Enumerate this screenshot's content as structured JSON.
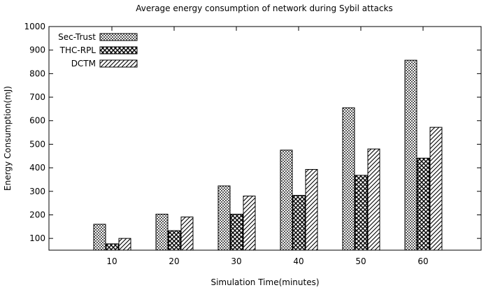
{
  "chart_data": {
    "type": "bar",
    "title": "Average energy consumption of network during Sybil attacks",
    "xlabel": "Simulation Time(minutes)",
    "ylabel": "Energy Consumption(mJ)",
    "categories": [
      "10",
      "20",
      "30",
      "40",
      "50",
      "60"
    ],
    "ylim": [
      50,
      1000
    ],
    "yticks": [
      100,
      200,
      300,
      400,
      500,
      600,
      700,
      800,
      900,
      1000
    ],
    "grid": false,
    "legend_position": "top-left",
    "series": [
      {
        "name": "Sec-Trust",
        "pattern": "dots",
        "values": [
          160,
          203,
          323,
          475,
          655,
          857
        ]
      },
      {
        "name": "THC-RPL",
        "pattern": "crosshatch",
        "values": [
          77,
          133,
          203,
          283,
          368,
          441
        ]
      },
      {
        "name": "DCTM",
        "pattern": "diagonal",
        "values": [
          100,
          191,
          280,
          393,
          480,
          572
        ]
      }
    ]
  }
}
